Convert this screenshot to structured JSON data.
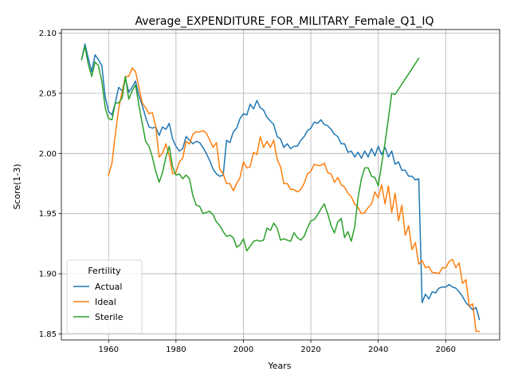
{
  "chart_data": {
    "type": "line",
    "title": "Average_EXPENDITURE_FOR_MILITARY_Female_Q1_IQ",
    "xlabel": "Years",
    "ylabel": "Score(1-3)",
    "xlim": [
      1946,
      2076
    ],
    "ylim": [
      1.845,
      2.103
    ],
    "xticks": [
      1960,
      1980,
      2000,
      2020,
      2040,
      2060
    ],
    "yticks": [
      1.85,
      1.9,
      1.95,
      2.0,
      2.05,
      2.1
    ],
    "ytick_labels": [
      "1.85",
      "1.90",
      "1.95",
      "2.00",
      "2.05",
      "2.10"
    ],
    "grid": true,
    "legend": {
      "title": "Fertility",
      "placement": "lower-left"
    },
    "series": [
      {
        "name": "Actual",
        "color": "#1f77b4",
        "x": [
          1952,
          1953,
          1954,
          1955,
          1956,
          1957,
          1958,
          1959,
          1960,
          1961,
          1962,
          1963,
          1964,
          1965,
          1966,
          1967,
          1968,
          1969,
          1970,
          1971,
          1972,
          1973,
          1974,
          1975,
          1976,
          1977,
          1978,
          1979,
          1980,
          1981,
          1982,
          1983,
          1984,
          1985,
          1986,
          1987,
          1988,
          1989,
          1990,
          1991,
          1992,
          1993,
          1994,
          1995,
          1996,
          1997,
          1998,
          1999,
          2000,
          2001,
          2002,
          2003,
          2004,
          2005,
          2006,
          2007,
          2008,
          2009,
          2010,
          2011,
          2012,
          2013,
          2014,
          2015,
          2016,
          2017,
          2018,
          2019,
          2020,
          2021,
          2022,
          2023,
          2024,
          2025,
          2026,
          2027,
          2028,
          2029,
          2030,
          2031,
          2032,
          2033,
          2034,
          2035,
          2036,
          2037,
          2038,
          2039,
          2040,
          2041,
          2042,
          2043,
          2044,
          2045,
          2046,
          2047,
          2048,
          2049,
          2050,
          2051,
          2052,
          2053,
          2054,
          2055,
          2056,
          2057,
          2058,
          2059,
          2060,
          2061,
          2062,
          2063,
          2064,
          2065,
          2066,
          2067,
          2068,
          2069,
          2070
        ],
        "values": [
          2.078,
          2.091,
          2.079,
          2.068,
          2.082,
          2.078,
          2.073,
          2.047,
          2.035,
          2.032,
          2.042,
          2.055,
          2.052,
          2.062,
          2.051,
          2.055,
          2.06,
          2.048,
          2.04,
          2.03,
          2.022,
          2.021,
          2.022,
          2.015,
          2.022,
          2.02,
          2.025,
          2.012,
          2.006,
          2.002,
          2.004,
          2.014,
          2.011,
          2.008,
          2.01,
          2.009,
          2.005,
          2.0,
          1.994,
          1.987,
          1.983,
          1.981,
          1.982,
          2.011,
          2.009,
          2.018,
          2.021,
          2.029,
          2.033,
          2.032,
          2.041,
          2.037,
          2.044,
          2.038,
          2.036,
          2.03,
          2.027,
          2.024,
          2.014,
          2.012,
          2.005,
          2.008,
          2.004,
          2.006,
          2.006,
          2.011,
          2.014,
          2.019,
          2.021,
          2.026,
          2.025,
          2.028,
          2.024,
          2.023,
          2.02,
          2.016,
          2.014,
          2.008,
          2.008,
          2.001,
          2.002,
          1.997,
          2.001,
          1.996,
          2.002,
          1.997,
          2.004,
          1.998,
          2.006,
          1.999,
          2.005,
          1.997,
          2.002,
          1.991,
          1.993,
          1.986,
          1.986,
          1.981,
          1.981,
          1.978,
          1.979,
          1.876,
          1.883,
          1.879,
          1.885,
          1.884,
          1.888,
          1.889,
          1.889,
          1.891,
          1.889,
          1.888,
          1.885,
          1.881,
          1.876,
          1.873,
          1.87,
          1.872,
          1.862
        ]
      },
      {
        "name": "Ideal",
        "color": "#ff7f0e",
        "x": [
          1960,
          1961,
          1962,
          1963,
          1964,
          1965,
          1966,
          1967,
          1968,
          1969,
          1970,
          1971,
          1972,
          1973,
          1974,
          1975,
          1976,
          1977,
          1978,
          1979,
          1980,
          1981,
          1982,
          1983,
          1984,
          1985,
          1986,
          1987,
          1988,
          1989,
          1990,
          1991,
          1992,
          1993,
          1994,
          1995,
          1996,
          1997,
          1998,
          1999,
          2000,
          2001,
          2002,
          2003,
          2004,
          2005,
          2006,
          2007,
          2008,
          2009,
          2010,
          2011,
          2012,
          2013,
          2014,
          2015,
          2016,
          2017,
          2018,
          2019,
          2020,
          2021,
          2022,
          2023,
          2024,
          2025,
          2026,
          2027,
          2028,
          2029,
          2030,
          2031,
          2032,
          2033,
          2034,
          2035,
          2036,
          2037,
          2038,
          2039,
          2040,
          2041,
          2042,
          2043,
          2044,
          2045,
          2046,
          2047,
          2048,
          2049,
          2050,
          2051,
          2052,
          2053,
          2054,
          2055,
          2056,
          2057,
          2058,
          2059,
          2060,
          2061,
          2062,
          2063,
          2064,
          2065,
          2066,
          2067,
          2068,
          2069,
          2070
        ],
        "values": [
          1.982,
          1.992,
          2.016,
          2.037,
          2.051,
          2.064,
          2.064,
          2.071,
          2.068,
          2.055,
          2.042,
          2.038,
          2.033,
          2.034,
          2.022,
          1.997,
          2.0,
          2.008,
          1.998,
          1.983,
          1.984,
          1.993,
          1.996,
          2.01,
          2.008,
          2.016,
          2.018,
          2.018,
          2.019,
          2.017,
          2.011,
          2.005,
          2.009,
          1.987,
          1.983,
          1.975,
          1.975,
          1.969,
          1.975,
          1.98,
          1.993,
          1.988,
          1.989,
          2.001,
          1.999,
          2.014,
          2.005,
          2.01,
          2.005,
          2.011,
          1.995,
          1.989,
          1.975,
          1.975,
          1.97,
          1.97,
          1.968,
          1.97,
          1.975,
          1.983,
          1.985,
          1.991,
          1.99,
          1.99,
          1.992,
          1.984,
          1.983,
          1.976,
          1.98,
          1.974,
          1.972,
          1.967,
          1.964,
          1.958,
          1.955,
          1.95,
          1.951,
          1.955,
          1.958,
          1.968,
          1.963,
          1.974,
          1.958,
          1.973,
          1.951,
          1.967,
          1.944,
          1.957,
          1.932,
          1.94,
          1.92,
          1.926,
          1.908,
          1.911,
          1.905,
          1.906,
          1.901,
          1.901,
          1.9,
          1.905,
          1.905,
          1.91,
          1.912,
          1.905,
          1.909,
          1.892,
          1.895,
          1.873,
          1.875,
          1.852,
          1.852
        ]
      },
      {
        "name": "Sterile",
        "color": "#2ca02c",
        "x": [
          1952,
          1953,
          1954,
          1955,
          1956,
          1957,
          1958,
          1959,
          1960,
          1961,
          1962,
          1963,
          1964,
          1965,
          1966,
          1967,
          1968,
          1969,
          1970,
          1971,
          1972,
          1973,
          1974,
          1975,
          1976,
          1977,
          1978,
          1979,
          1980,
          1981,
          1982,
          1983,
          1984,
          1985,
          1986,
          1987,
          1988,
          1989,
          1990,
          1991,
          1992,
          1993,
          1994,
          1995,
          1996,
          1997,
          1998,
          1999,
          2000,
          2001,
          2002,
          2003,
          2004,
          2005,
          2006,
          2007,
          2008,
          2009,
          2010,
          2011,
          2012,
          2013,
          2014,
          2015,
          2016,
          2017,
          2018,
          2019,
          2020,
          2021,
          2022,
          2023,
          2024,
          2025,
          2026,
          2027,
          2028,
          2029,
          2030,
          2031,
          2032,
          2033,
          2034,
          2035,
          2036,
          2037,
          2038,
          2039,
          2040,
          2041,
          2042,
          2043,
          2044,
          2045,
          2052
        ],
        "values": [
          2.078,
          2.089,
          2.074,
          2.064,
          2.076,
          2.073,
          2.06,
          2.038,
          2.029,
          2.028,
          2.042,
          2.042,
          2.046,
          2.064,
          2.045,
          2.052,
          2.057,
          2.04,
          2.025,
          2.01,
          2.006,
          1.997,
          1.985,
          1.976,
          1.984,
          1.997,
          2.006,
          1.989,
          1.982,
          1.983,
          1.979,
          1.982,
          1.979,
          1.965,
          1.957,
          1.956,
          1.95,
          1.951,
          1.952,
          1.949,
          1.943,
          1.94,
          1.935,
          1.931,
          1.932,
          1.93,
          1.922,
          1.924,
          1.929,
          1.919,
          1.923,
          1.927,
          1.928,
          1.927,
          1.928,
          1.938,
          1.936,
          1.942,
          1.938,
          1.928,
          1.929,
          1.928,
          1.927,
          1.934,
          1.93,
          1.928,
          1.931,
          1.938,
          1.944,
          1.945,
          1.949,
          1.954,
          1.958,
          1.95,
          1.94,
          1.934,
          1.943,
          1.946,
          1.93,
          1.935,
          1.927,
          1.939,
          1.963,
          1.979,
          1.988,
          1.988,
          1.981,
          1.98,
          1.973,
          1.991,
          2.009,
          2.029,
          2.05,
          2.049,
          2.079
        ]
      }
    ]
  }
}
